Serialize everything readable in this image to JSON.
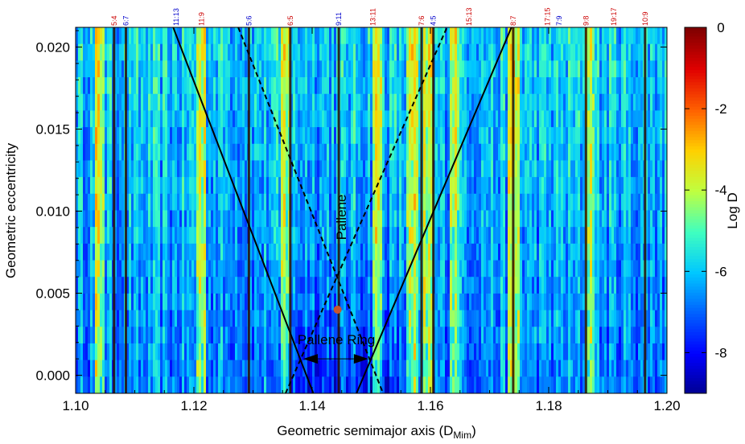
{
  "chart_data": {
    "type": "heatmap",
    "xlabel": "Geometric semimajor axis (D",
    "xlabel_sub": "Mim",
    "xlabel_close": ")",
    "ylabel": "Geometric eccentricity",
    "xlim": [
      1.1,
      1.2
    ],
    "ylim": [
      -0.0011,
      0.0212
    ],
    "x_ticks": [
      1.1,
      1.12,
      1.14,
      1.16,
      1.18,
      1.2
    ],
    "x_tick_labels": [
      "1.10",
      "1.12",
      "1.14",
      "1.16",
      "1.18",
      "1.20"
    ],
    "y_ticks": [
      0.0,
      0.005,
      0.01,
      0.015,
      0.02
    ],
    "y_tick_labels": [
      "0.000",
      "0.005",
      "0.010",
      "0.015",
      "0.020"
    ],
    "colorbar": {
      "label": "Log D",
      "range": [
        -9,
        0
      ],
      "ticks": [
        0,
        -2,
        -4,
        -6,
        -8
      ],
      "tick_labels": [
        "0",
        "-2",
        "-4",
        "-6",
        "-8"
      ],
      "colors": [
        "#00008f",
        "#0000ff",
        "#0060ff",
        "#00c8ff",
        "#40ffbf",
        "#bfff40",
        "#ffd000",
        "#ff6000",
        "#e00000",
        "#800000"
      ]
    },
    "resonances": [
      {
        "label": "5:4",
        "x": 1.1065,
        "color": "#cc0000"
      },
      {
        "label": "6:7",
        "x": 1.1085,
        "color": "#0000cc"
      },
      {
        "label": "11:13",
        "x": 1.117,
        "color": "#0000cc"
      },
      {
        "label": "11:9",
        "x": 1.1213,
        "color": "#cc0000"
      },
      {
        "label": "5:6",
        "x": 1.1293,
        "color": "#0000cc"
      },
      {
        "label": "6:5",
        "x": 1.1363,
        "color": "#cc0000"
      },
      {
        "label": "9:11",
        "x": 1.1445,
        "color": "#0000cc"
      },
      {
        "label": "13:11",
        "x": 1.1503,
        "color": "#cc0000"
      },
      {
        "label": "7:6",
        "x": 1.1585,
        "color": "#cc0000"
      },
      {
        "label": "4:5",
        "x": 1.1605,
        "color": "#0000cc"
      },
      {
        "label": "15:13",
        "x": 1.1665,
        "color": "#cc0000"
      },
      {
        "label": "8:7",
        "x": 1.174,
        "color": "#cc0000"
      },
      {
        "label": "17:15",
        "x": 1.1798,
        "color": "#cc0000"
      },
      {
        "label": "7:9",
        "x": 1.1818,
        "color": "#0000cc"
      },
      {
        "label": "9:8",
        "x": 1.1863,
        "color": "#cc0000"
      },
      {
        "label": "19:17",
        "x": 1.191,
        "color": "#cc0000"
      },
      {
        "label": "10:9",
        "x": 1.1963,
        "color": "#cc0000"
      }
    ],
    "dark_lines_x": [
      1.1065,
      1.1085,
      1.1293,
      1.1363,
      1.1445,
      1.1585,
      1.1605,
      1.174,
      1.1863,
      1.1963
    ],
    "bright_bands_x": [
      1.104,
      1.1213,
      1.1355,
      1.151,
      1.157,
      1.1595,
      1.164,
      1.174,
      1.187
    ],
    "solid_lines": [
      {
        "points": [
          [
            1.1165,
            0.0212
          ],
          [
            1.1402,
            -0.0011
          ]
        ]
      },
      {
        "points": [
          [
            1.1475,
            -0.0011
          ],
          [
            1.1737,
            0.0212
          ]
        ]
      }
    ],
    "dashed_lines": [
      {
        "points": [
          [
            1.1275,
            0.0212
          ],
          [
            1.152,
            -0.0011
          ]
        ]
      },
      {
        "points": [
          [
            1.1355,
            -0.0011
          ],
          [
            1.1628,
            0.0212
          ]
        ]
      }
    ],
    "pallene_point": {
      "x": 1.1443,
      "y": 0.004,
      "color": "#c8552e"
    },
    "ring_arrow": {
      "x1": 1.1385,
      "x2": 1.1495,
      "y": 0.001
    },
    "annotations": {
      "pallene": "Pallene",
      "ring": "Pallene Ring"
    }
  }
}
